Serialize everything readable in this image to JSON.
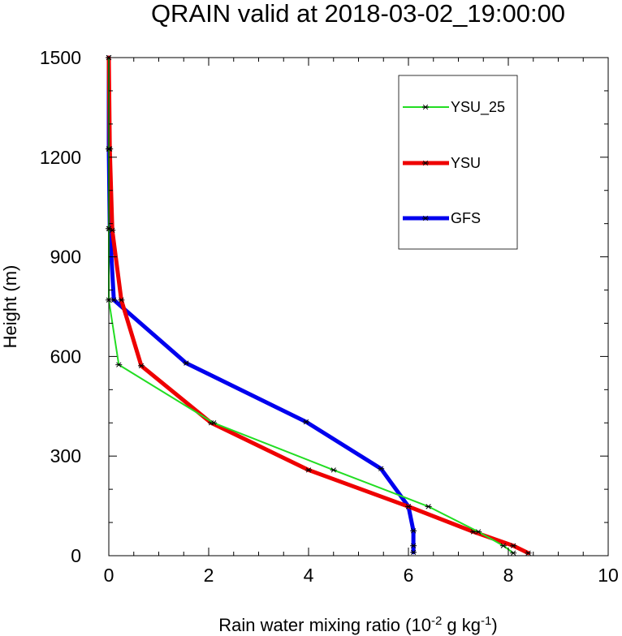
{
  "chart_data": {
    "type": "line",
    "title": "QRAIN valid at 2018-03-02_19:00:00",
    "xlabel": {
      "prefix": "Rain water mixing ratio (10",
      "exp1": "-2",
      "mid": " g kg",
      "exp2": "-1",
      "suffix": ")"
    },
    "ylabel": "Height (m)",
    "xlim": [
      0,
      10
    ],
    "ylim": [
      0,
      1500
    ],
    "xticks": [
      0,
      2,
      4,
      6,
      8,
      10
    ],
    "yticks": [
      0,
      300,
      600,
      900,
      1200,
      1500
    ],
    "legend_position": "top-right",
    "series": [
      {
        "name": "YSU_25",
        "color": "#22dd22",
        "points": [
          [
            8.1,
            8
          ],
          [
            7.9,
            30
          ],
          [
            7.4,
            72
          ],
          [
            6.4,
            148
          ],
          [
            4.5,
            258
          ],
          [
            2.1,
            400
          ],
          [
            0.2,
            575
          ],
          [
            0.0,
            770
          ],
          [
            0.0,
            985
          ],
          [
            0.0,
            1225
          ],
          [
            0.0,
            1500
          ]
        ]
      },
      {
        "name": "YSU",
        "color": "#ee0000",
        "points": [
          [
            8.4,
            8
          ],
          [
            8.1,
            30
          ],
          [
            7.3,
            72
          ],
          [
            6.0,
            148
          ],
          [
            4.0,
            258
          ],
          [
            2.05,
            400
          ],
          [
            0.65,
            572
          ],
          [
            0.25,
            770
          ],
          [
            0.07,
            980
          ],
          [
            0.02,
            1225
          ],
          [
            0.0,
            1500
          ]
        ]
      },
      {
        "name": "GFS",
        "color": "#0000ee",
        "points": [
          [
            6.1,
            10
          ],
          [
            6.1,
            30
          ],
          [
            6.1,
            75
          ],
          [
            6.0,
            148
          ],
          [
            5.45,
            262
          ],
          [
            3.95,
            403
          ],
          [
            1.55,
            580
          ],
          [
            0.1,
            770
          ],
          [
            0.02,
            985
          ],
          [
            0.0,
            1225
          ],
          [
            0.0,
            1500
          ]
        ]
      }
    ]
  }
}
